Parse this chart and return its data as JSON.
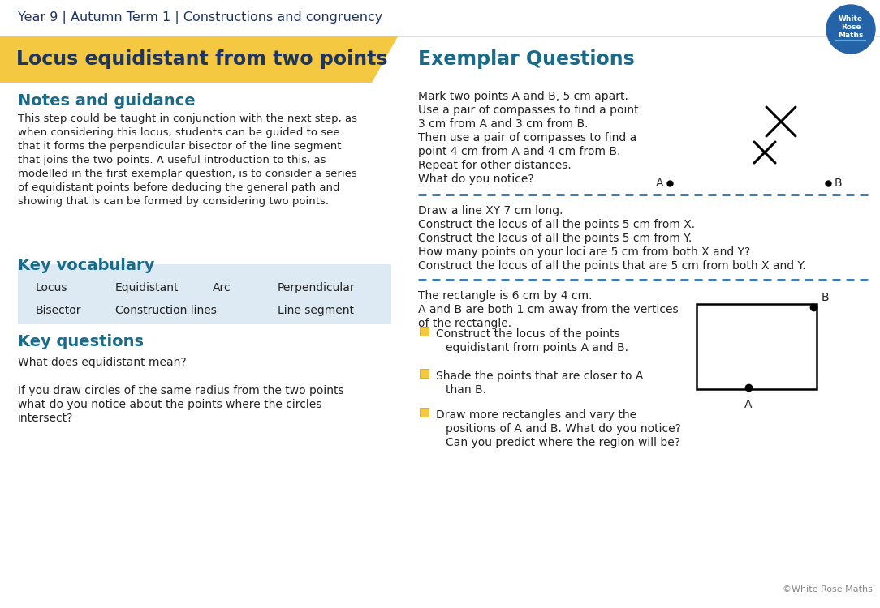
{
  "title_bar_text": "Year 9 | Autumn Term 1 | Constructions and congruency",
  "yellow_title": "Locus equidistant from two points",
  "right_title": "Exemplar Questions",
  "notes_heading": "Notes and guidance",
  "notes_body": "This step could be taught in conjunction with the next step, as\nwhen considering this locus, students can be guided to see\nthat it forms the perpendicular bisector of the line segment\nthat joins the two points. A useful introduction to this, as\nmodelled in the first exemplar question, is to consider a series\nof equidistant points before deducing the general path and\nshowing that is can be formed by considering two points.",
  "vocab_heading": "Key vocabulary",
  "vocab_row1": [
    "Locus",
    "Equidistant",
    "Arc",
    "Perpendicular"
  ],
  "vocab_row2": [
    "Bisector",
    "Construction lines",
    "",
    "Line segment"
  ],
  "questions_heading": "Key questions",
  "question1": "What does equidistant mean?",
  "question2": "If you draw circles of the same radius from the two points\nwhat do you notice about the points where the circles\nintersect?",
  "exemplar_q1_lines": [
    "Mark two points A and B, 5 cm apart.",
    "Use a pair of compasses to find a point",
    "3 cm from A and 3 cm from B.",
    "Then use a pair of compasses to find a",
    "point 4 cm from A and 4 cm from B.",
    "Repeat for other distances.",
    "What do you notice?"
  ],
  "exemplar_q2_lines": [
    "Draw a line XY 7 cm long.",
    "Construct the locus of all the points 5 cm from X.",
    "Construct the locus of all the points 5 cm from Y.",
    "How many points on your loci are 5 cm from both X and Y?",
    "Construct the locus of all the points that are 5 cm from both X and Y."
  ],
  "exemplar_q3_intro_lines": [
    "The rectangle is 6 cm by 4 cm.",
    "A and B are both 1 cm away from the vertices",
    "of the rectangle."
  ],
  "exemplar_q3_bullets": [
    [
      "Construct the locus of the points",
      "equidistant from points A and B."
    ],
    [
      "Shade the points that are closer to A",
      "than B."
    ],
    [
      "Draw more rectangles and vary the",
      "positions of A and B. What do you notice?",
      "Can you predict where the region will be?"
    ]
  ],
  "copyright": "©White Rose Maths",
  "bg_color": "#ffffff",
  "yellow_color": "#f5c842",
  "dark_blue": "#1e3560",
  "teal_blue": "#1a6b8a",
  "light_blue_bg": "#ddeaf3",
  "dashed_blue": "#2b6cb0",
  "bullet_yellow": "#f5c842",
  "text_dark": "#222222"
}
